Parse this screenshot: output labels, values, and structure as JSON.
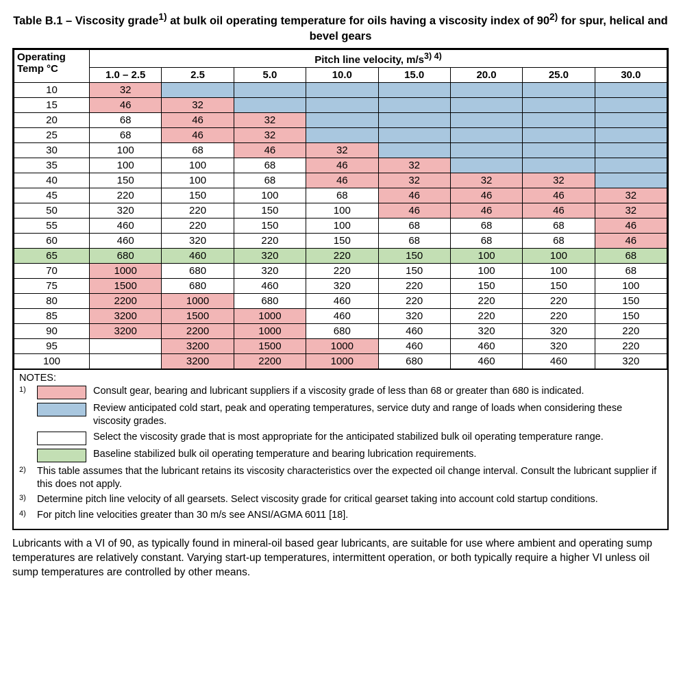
{
  "title_html": "Table B.1 – Viscosity grade<sup>1)</sup> at bulk oil operating temperature for oils having a viscosity index of 90<sup>2)</sup> for spur, helical and bevel gears",
  "colors": {
    "pink": "#f2b6b6",
    "blue": "#a9c7df",
    "green": "#c3dfb4",
    "white": "#ffffff",
    "border": "#000000"
  },
  "col_header_operating_html": "Operating<br>Temp °C",
  "col_header_pitch_html": "Pitch line velocity, m/s<sup>3) 4)</sup>",
  "velocity_cols": [
    "1.0 – 2.5",
    "2.5",
    "5.0",
    "10.0",
    "15.0",
    "20.0",
    "25.0",
    "30.0"
  ],
  "temps": [
    "10",
    "15",
    "20",
    "25",
    "30",
    "35",
    "40",
    "45",
    "50",
    "55",
    "60",
    "65",
    "70",
    "75",
    "80",
    "85",
    "90",
    "95",
    "100"
  ],
  "grid": {
    "values": [
      [
        "32",
        "",
        "",
        "",
        "",
        "",
        "",
        ""
      ],
      [
        "46",
        "32",
        "",
        "",
        "",
        "",
        "",
        ""
      ],
      [
        "68",
        "46",
        "32",
        "",
        "",
        "",
        "",
        ""
      ],
      [
        "68",
        "46",
        "32",
        "",
        "",
        "",
        "",
        ""
      ],
      [
        "100",
        "68",
        "46",
        "32",
        "",
        "",
        "",
        ""
      ],
      [
        "100",
        "100",
        "68",
        "46",
        "32",
        "",
        "",
        ""
      ],
      [
        "150",
        "100",
        "68",
        "46",
        "32",
        "32",
        "32",
        ""
      ],
      [
        "220",
        "150",
        "100",
        "68",
        "46",
        "46",
        "46",
        "32"
      ],
      [
        "320",
        "220",
        "150",
        "100",
        "46",
        "46",
        "46",
        "32"
      ],
      [
        "460",
        "220",
        "150",
        "100",
        "68",
        "68",
        "68",
        "46"
      ],
      [
        "460",
        "320",
        "220",
        "150",
        "68",
        "68",
        "68",
        "46"
      ],
      [
        "680",
        "460",
        "320",
        "220",
        "150",
        "100",
        "100",
        "68"
      ],
      [
        "1000",
        "680",
        "320",
        "220",
        "150",
        "100",
        "100",
        "68"
      ],
      [
        "1500",
        "680",
        "460",
        "320",
        "220",
        "150",
        "150",
        "100"
      ],
      [
        "2200",
        "1000",
        "680",
        "460",
        "220",
        "220",
        "220",
        "150"
      ],
      [
        "3200",
        "1500",
        "1000",
        "460",
        "320",
        "220",
        "220",
        "150"
      ],
      [
        "3200",
        "2200",
        "1000",
        "680",
        "460",
        "320",
        "320",
        "220"
      ],
      [
        "",
        "3200",
        "1500",
        "1000",
        "460",
        "460",
        "320",
        "220"
      ],
      [
        "",
        "3200",
        "2200",
        "1000",
        "680",
        "460",
        "460",
        "320"
      ]
    ],
    "colors": [
      [
        "pink",
        "blue",
        "blue",
        "blue",
        "blue",
        "blue",
        "blue",
        "blue"
      ],
      [
        "pink",
        "pink",
        "blue",
        "blue",
        "blue",
        "blue",
        "blue",
        "blue"
      ],
      [
        "white",
        "pink",
        "pink",
        "blue",
        "blue",
        "blue",
        "blue",
        "blue"
      ],
      [
        "white",
        "pink",
        "pink",
        "blue",
        "blue",
        "blue",
        "blue",
        "blue"
      ],
      [
        "white",
        "white",
        "pink",
        "pink",
        "blue",
        "blue",
        "blue",
        "blue"
      ],
      [
        "white",
        "white",
        "white",
        "pink",
        "pink",
        "blue",
        "blue",
        "blue"
      ],
      [
        "white",
        "white",
        "white",
        "pink",
        "pink",
        "pink",
        "pink",
        "blue"
      ],
      [
        "white",
        "white",
        "white",
        "white",
        "pink",
        "pink",
        "pink",
        "pink"
      ],
      [
        "white",
        "white",
        "white",
        "white",
        "pink",
        "pink",
        "pink",
        "pink"
      ],
      [
        "white",
        "white",
        "white",
        "white",
        "white",
        "white",
        "white",
        "pink"
      ],
      [
        "white",
        "white",
        "white",
        "white",
        "white",
        "white",
        "white",
        "pink"
      ],
      [
        "green",
        "green",
        "green",
        "green",
        "green",
        "green",
        "green",
        "green"
      ],
      [
        "pink",
        "white",
        "white",
        "white",
        "white",
        "white",
        "white",
        "white"
      ],
      [
        "pink",
        "white",
        "white",
        "white",
        "white",
        "white",
        "white",
        "white"
      ],
      [
        "pink",
        "pink",
        "white",
        "white",
        "white",
        "white",
        "white",
        "white"
      ],
      [
        "pink",
        "pink",
        "pink",
        "white",
        "white",
        "white",
        "white",
        "white"
      ],
      [
        "pink",
        "pink",
        "pink",
        "white",
        "white",
        "white",
        "white",
        "white"
      ],
      [
        "white",
        "pink",
        "pink",
        "pink",
        "white",
        "white",
        "white",
        "white"
      ],
      [
        "white",
        "pink",
        "pink",
        "pink",
        "white",
        "white",
        "white",
        "white"
      ]
    ],
    "temp_col_color": [
      "white",
      "white",
      "white",
      "white",
      "white",
      "white",
      "white",
      "white",
      "white",
      "white",
      "white",
      "green",
      "white",
      "white",
      "white",
      "white",
      "white",
      "white",
      "white"
    ]
  },
  "notes_label": "NOTES:",
  "legend": [
    {
      "sup": "1)",
      "color": "pink",
      "text": "Consult gear, bearing and lubricant suppliers if a viscosity grade of less than 68 or greater than 680 is indicated."
    },
    {
      "sup": "",
      "color": "blue",
      "text": "Review anticipated cold start, peak and operating temperatures, service duty and range of loads when considering these viscosity grades."
    },
    {
      "sup": "",
      "color": "white",
      "text": "Select the viscosity grade that is most appropriate for the anticipated stabilized bulk oil operating temperature range."
    },
    {
      "sup": "",
      "color": "green",
      "text": "Baseline stabilized bulk oil operating temperature and bearing lubrication requirements."
    }
  ],
  "plain_notes": [
    {
      "sup": "2)",
      "text": "This table assumes that the lubricant retains its viscosity characteristics over the expected oil change interval. Consult the lubricant supplier if this does not apply."
    },
    {
      "sup": "3)",
      "text": "Determine pitch line velocity of all gearsets. Select viscosity grade for critical gearset taking into account cold startup conditions."
    },
    {
      "sup": "4)",
      "text": "For pitch line velocities greater than 30 m/s see ANSI/AGMA 6011 [18]."
    }
  ],
  "paragraph": "Lubricants with a VI of 90, as typically found in mineral-oil based gear lubricants, are suitable for use where ambient and operating sump temperatures are relatively constant. Varying start-up temperatures, intermittent operation, or both typically require a higher VI unless oil sump temperatures are controlled by other means."
}
